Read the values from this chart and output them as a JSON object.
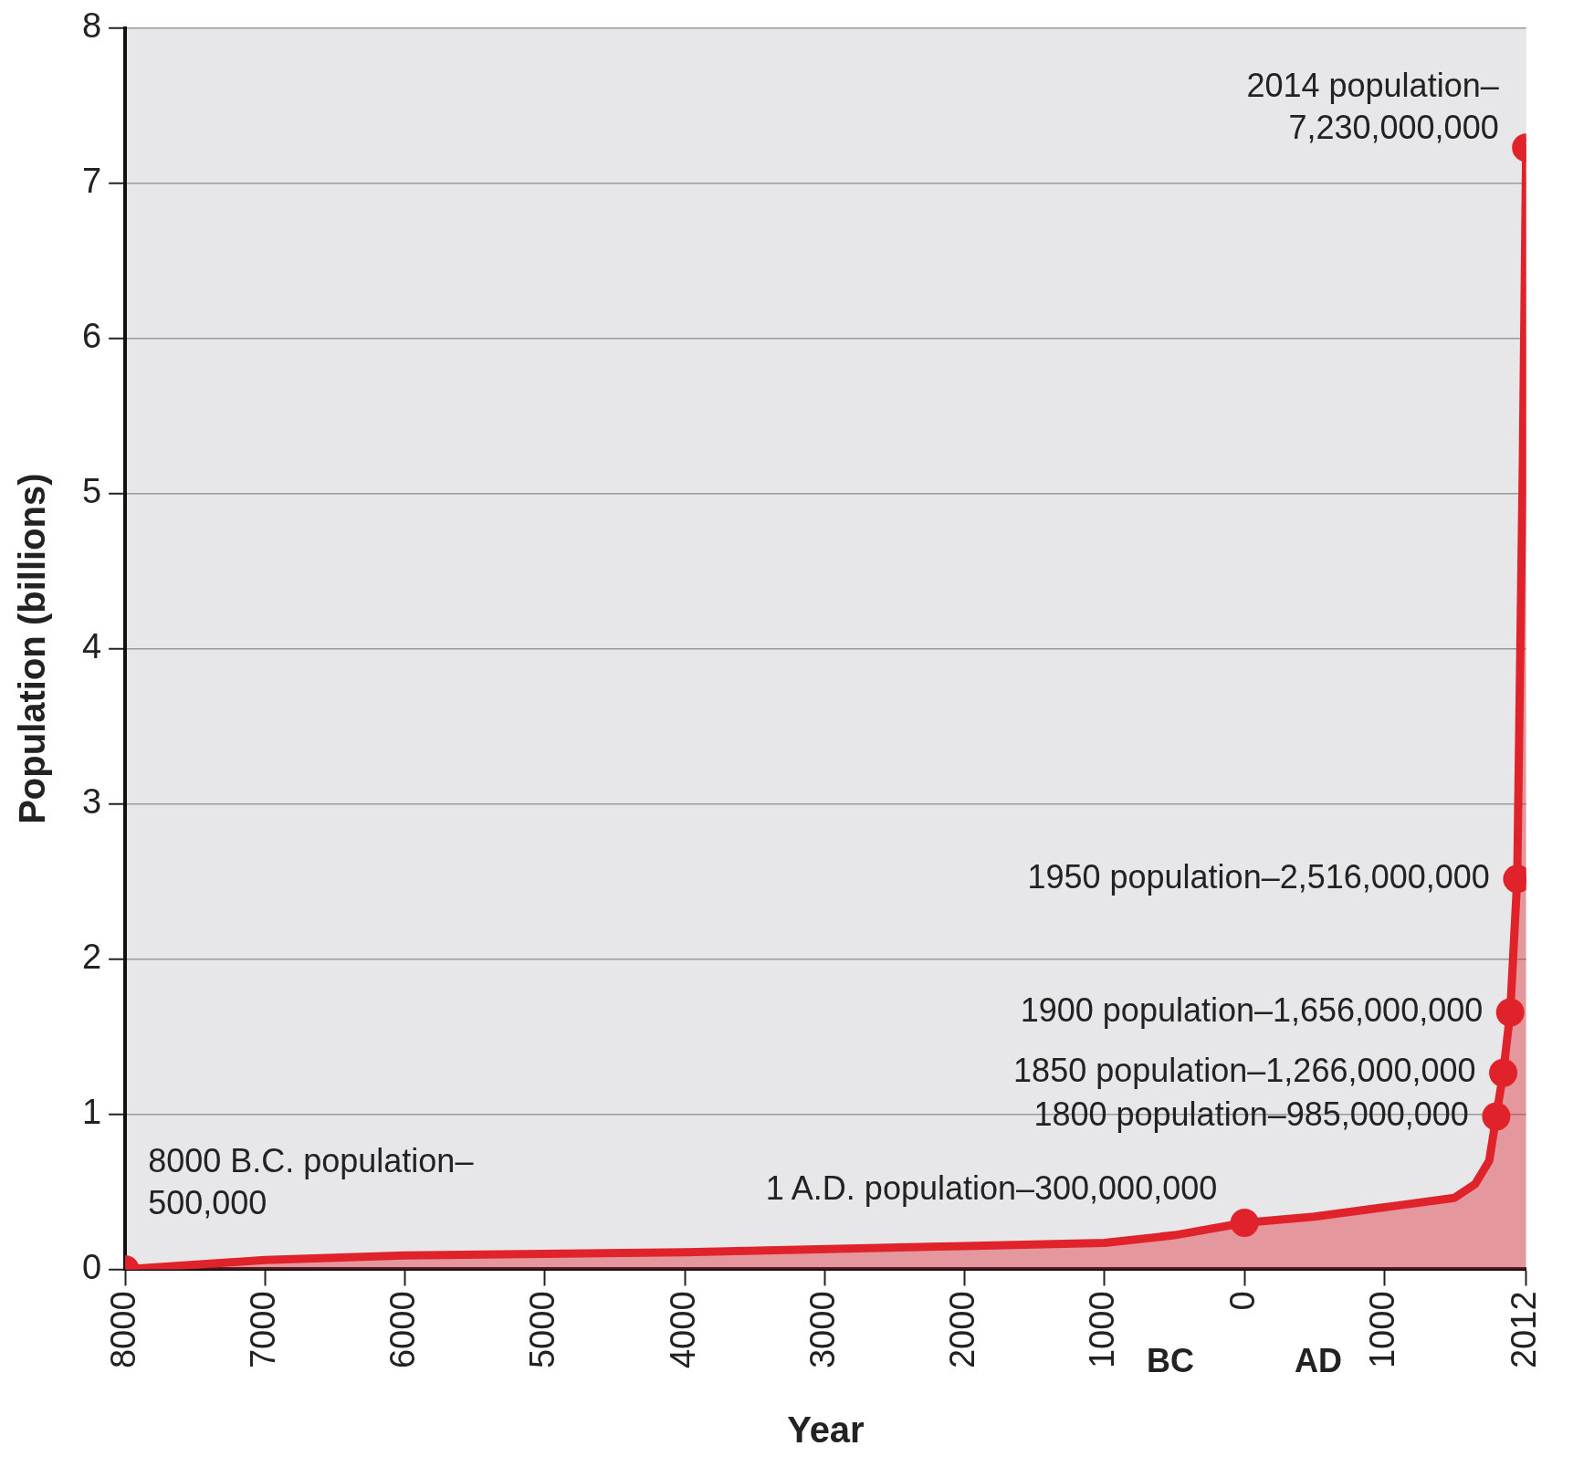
{
  "chart_data": {
    "type": "area",
    "xlabel": "Year",
    "ylabel": "Population (billions)",
    "xlim": [
      -8000,
      2014
    ],
    "xticks": [
      {
        "value": -8000,
        "label": "8000"
      },
      {
        "value": -7000,
        "label": "7000"
      },
      {
        "value": -6000,
        "label": "6000"
      },
      {
        "value": -5000,
        "label": "5000"
      },
      {
        "value": -4000,
        "label": "4000"
      },
      {
        "value": -3000,
        "label": "3000"
      },
      {
        "value": -2000,
        "label": "2000"
      },
      {
        "value": -1000,
        "label": "1000"
      },
      0,
      1000,
      2012
    ],
    "ylim": [
      0,
      8
    ],
    "yticks": [
      0,
      1,
      2,
      3,
      4,
      5,
      6,
      7,
      8
    ],
    "grid": "y",
    "legend": false,
    "series": [
      {
        "type": "area",
        "color": "#e0232b",
        "marker": "none",
        "x": [
          -8000,
          -7000,
          -6000,
          -4000,
          -2000,
          -1000,
          -500,
          1,
          500,
          1000,
          1500,
          1650,
          1750,
          1800,
          1850,
          1900,
          1950,
          1990,
          2014
        ],
        "values": [
          0.0005,
          0.06,
          0.09,
          0.11,
          0.15,
          0.17,
          0.22,
          0.3,
          0.34,
          0.4,
          0.46,
          0.55,
          0.7,
          0.985,
          1.266,
          1.656,
          2.516,
          5.2,
          7.23
        ]
      },
      {
        "type": "scatter",
        "color": "#e0232b",
        "marker": "circle",
        "x": [
          -8000,
          1,
          1800,
          1850,
          1900,
          1950,
          2014
        ],
        "values": [
          0.0005,
          0.3,
          0.985,
          1.266,
          1.656,
          2.516,
          7.23
        ]
      }
    ],
    "annotations": [
      {
        "text": "8000 B.C. population–\n500,000",
        "x": -8000,
        "y": 0.0005
      },
      {
        "text": "1 A.D. population–300,000,000",
        "x": 1,
        "y": 0.3
      },
      {
        "text": "1800 population–985,000,000",
        "x": 1800,
        "y": 0.985
      },
      {
        "text": "1850 population–1,266,000,000",
        "x": 1850,
        "y": 1.266
      },
      {
        "text": "1900 population–1,656,000,000",
        "x": 1900,
        "y": 1.656
      },
      {
        "text": "1950 population–2,516,000,000",
        "x": 1950,
        "y": 2.516
      },
      {
        "text": "2014 population–\n7,230,000,000",
        "x": 2014,
        "y": 7.23
      },
      "BC",
      "AD"
    ]
  }
}
